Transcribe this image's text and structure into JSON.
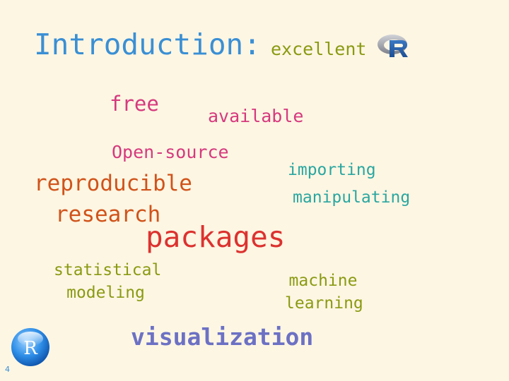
{
  "slide": {
    "title": "Introduction:",
    "title_suffix": "excellent",
    "logo_icon": "r-logo-icon",
    "page_number": "4"
  },
  "words": {
    "free": "free",
    "available": "available",
    "open_source": "Open-source",
    "importing": "importing",
    "reproducible": "reproducible",
    "manipulating": "manipulating",
    "research": "research",
    "packages": "packages",
    "statistical_modeling_line1": "statistical",
    "statistical_modeling_line2": "modeling",
    "machine_learning_line1": "machine",
    "machine_learning_line2": "learning",
    "visualization": "visualization"
  },
  "badge": {
    "letter": "R",
    "icon": "r-ball-icon"
  },
  "colors": {
    "background": "#fdf6e3",
    "title": "#3a8fd4",
    "olive": "#8a9a12",
    "pink": "#d6397e",
    "teal": "#2aa6a0",
    "orange": "#d0531a",
    "red": "#dc322f",
    "violet": "#6c71c4"
  }
}
